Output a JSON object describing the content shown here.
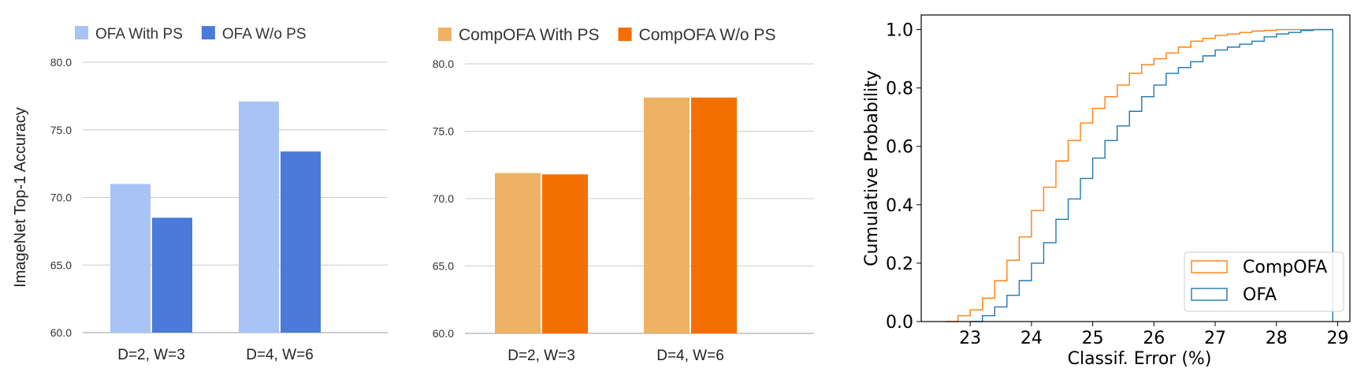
{
  "chart_data": [
    {
      "type": "bar",
      "ylabel": "ImageNet Top-1 Accuracy",
      "categories": [
        "D=2, W=3",
        "D=4, W=6"
      ],
      "ylim": [
        60,
        80
      ],
      "yticks": [
        "60.0",
        "65.0",
        "70.0",
        "75.0",
        "80.0"
      ],
      "grid": true,
      "legend_position": "top-left",
      "series": [
        {
          "name": "OFA With PS",
          "color": "#a8c3f5",
          "values": [
            71.0,
            77.1
          ]
        },
        {
          "name": "OFA W/o PS",
          "color": "#4a7bdb",
          "values": [
            68.5,
            73.4
          ]
        }
      ]
    },
    {
      "type": "bar",
      "categories": [
        "D=2, W=3",
        "D=4, W=6"
      ],
      "ylim": [
        60,
        80
      ],
      "yticks": [
        "60.0",
        "65.0",
        "70.0",
        "75.0",
        "80.0"
      ],
      "grid": true,
      "legend_position": "top-left",
      "series": [
        {
          "name": "CompOFA With PS",
          "color": "#eeb265",
          "values": [
            71.9,
            77.5
          ]
        },
        {
          "name": "CompOFA W/o PS",
          "color": "#f37000",
          "values": [
            71.8,
            77.5
          ]
        }
      ]
    },
    {
      "type": "line",
      "xlabel": "Classif. Error (%)",
      "ylabel": "Cumulative Probability",
      "xlim": [
        22.2,
        29.2
      ],
      "ylim": [
        0,
        1.05
      ],
      "xticks": [
        "23",
        "24",
        "25",
        "26",
        "27",
        "28",
        "29"
      ],
      "yticks": [
        "0.0",
        "0.2",
        "0.4",
        "0.6",
        "0.8",
        "1.0"
      ],
      "grid": false,
      "legend_position": "bottom-right",
      "series": [
        {
          "name": "CompOFA",
          "color": "#ff7f0e",
          "x": [
            22.6,
            22.8,
            23.0,
            23.2,
            23.4,
            23.6,
            23.8,
            24.0,
            24.2,
            24.4,
            24.6,
            24.8,
            25.0,
            25.2,
            25.4,
            25.6,
            25.8,
            26.0,
            26.2,
            26.4,
            26.6,
            26.8,
            27.0,
            27.2,
            27.4,
            27.6,
            27.8,
            28.0,
            28.92
          ],
          "y": [
            0.0,
            0.02,
            0.04,
            0.08,
            0.14,
            0.21,
            0.29,
            0.38,
            0.46,
            0.55,
            0.62,
            0.68,
            0.73,
            0.77,
            0.81,
            0.85,
            0.88,
            0.9,
            0.92,
            0.94,
            0.96,
            0.97,
            0.98,
            0.985,
            0.99,
            0.995,
            0.997,
            1.0,
            1.0
          ]
        },
        {
          "name": "OFA",
          "color": "#1f77b4",
          "x": [
            23.0,
            23.2,
            23.4,
            23.6,
            23.8,
            24.0,
            24.2,
            24.4,
            24.6,
            24.8,
            25.0,
            25.2,
            25.4,
            25.6,
            25.8,
            26.0,
            26.2,
            26.4,
            26.6,
            26.8,
            27.0,
            27.2,
            27.4,
            27.6,
            27.8,
            28.0,
            28.2,
            28.4,
            28.6,
            28.92
          ],
          "y": [
            0.0,
            0.02,
            0.05,
            0.09,
            0.14,
            0.2,
            0.27,
            0.35,
            0.42,
            0.49,
            0.56,
            0.62,
            0.67,
            0.72,
            0.77,
            0.81,
            0.85,
            0.87,
            0.89,
            0.91,
            0.93,
            0.94,
            0.95,
            0.96,
            0.975,
            0.985,
            0.99,
            0.997,
            1.0,
            1.0
          ]
        }
      ]
    }
  ]
}
